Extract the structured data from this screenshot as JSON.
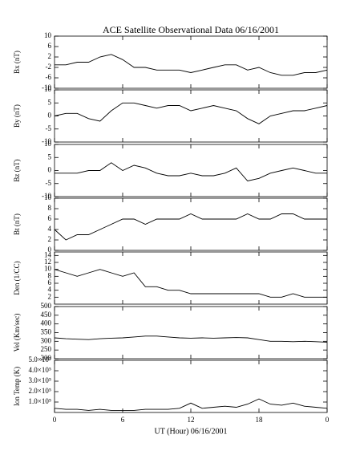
{
  "chart_data": [
    {
      "type": "line",
      "title": "ACE Satellite Observational Data   06/16/2001",
      "ylabel": "Bx (nT)",
      "x": [
        0,
        1,
        2,
        3,
        4,
        5,
        6,
        7,
        8,
        9,
        10,
        11,
        12,
        13,
        14,
        15,
        16,
        17,
        18,
        19,
        20,
        21,
        22,
        23,
        24
      ],
      "series": [
        {
          "color": "#000000",
          "values": [
            -1,
            -1,
            0,
            0,
            2,
            3,
            1,
            -2,
            -2,
            -3,
            -3,
            -3,
            -4,
            -3,
            -2,
            -1,
            -1,
            -3,
            -2,
            -4,
            -5,
            -5,
            -4,
            -4,
            -3
          ]
        }
      ],
      "xlim": [
        0,
        24
      ],
      "xticks": [
        0,
        6,
        12,
        18,
        24
      ],
      "ylim": [
        -10,
        10
      ],
      "yticks": [
        -10,
        -6,
        -2,
        2,
        6,
        10
      ]
    },
    {
      "type": "line",
      "ylabel": "By (nT)",
      "x": [
        0,
        1,
        2,
        3,
        4,
        5,
        6,
        7,
        8,
        9,
        10,
        11,
        12,
        13,
        14,
        15,
        16,
        17,
        18,
        19,
        20,
        21,
        22,
        23,
        24
      ],
      "series": [
        {
          "color": "#000000",
          "values": [
            0,
            1,
            1,
            -1,
            -2,
            2,
            5,
            5,
            4,
            3,
            4,
            4,
            2,
            3,
            4,
            3,
            2,
            -1,
            -3,
            0,
            1,
            2,
            2,
            3,
            4
          ]
        }
      ],
      "xlim": [
        0,
        24
      ],
      "xticks": [
        0,
        6,
        12,
        18,
        24
      ],
      "ylim": [
        -10,
        10
      ],
      "yticks": [
        -10,
        -5,
        0,
        5,
        10
      ]
    },
    {
      "type": "line",
      "ylabel": "Bz (nT)",
      "x": [
        0,
        1,
        2,
        3,
        4,
        5,
        6,
        7,
        8,
        9,
        10,
        11,
        12,
        13,
        14,
        15,
        16,
        17,
        18,
        19,
        20,
        21,
        22,
        23,
        24
      ],
      "series": [
        {
          "color": "#000000",
          "values": [
            -1,
            -1,
            -1,
            0,
            0,
            3,
            0,
            2,
            1,
            -1,
            -2,
            -2,
            -1,
            -2,
            -2,
            -1,
            1,
            -4,
            -3,
            -1,
            0,
            1,
            0,
            -1,
            -1
          ]
        }
      ],
      "xlim": [
        0,
        24
      ],
      "xticks": [
        0,
        6,
        12,
        18,
        24
      ],
      "ylim": [
        -10,
        10
      ],
      "yticks": [
        -10,
        -5,
        0,
        5,
        10
      ]
    },
    {
      "type": "line",
      "ylabel": "Bt (nT)",
      "x": [
        0,
        1,
        2,
        3,
        4,
        5,
        6,
        7,
        8,
        9,
        10,
        11,
        12,
        13,
        14,
        15,
        16,
        17,
        18,
        19,
        20,
        21,
        22,
        23,
        24
      ],
      "series": [
        {
          "color": "#000000",
          "values": [
            4,
            2,
            3,
            3,
            4,
            5,
            6,
            6,
            5,
            6,
            6,
            6,
            7,
            6,
            6,
            6,
            6,
            7,
            6,
            6,
            7,
            7,
            6,
            6,
            6
          ]
        }
      ],
      "xlim": [
        0,
        24
      ],
      "xticks": [
        0,
        6,
        12,
        18,
        24
      ],
      "ylim": [
        0,
        10
      ],
      "yticks": [
        0,
        2,
        4,
        6,
        8,
        10
      ]
    },
    {
      "type": "line",
      "ylabel": "Den (1/CC)",
      "x": [
        0,
        1,
        2,
        3,
        4,
        5,
        6,
        7,
        8,
        9,
        10,
        11,
        12,
        13,
        14,
        15,
        16,
        17,
        18,
        19,
        20,
        21,
        22,
        23,
        24
      ],
      "series": [
        {
          "color": "#000000",
          "values": [
            10,
            9,
            8,
            9,
            10,
            9,
            8,
            9,
            5,
            5,
            4,
            4,
            3,
            3,
            3,
            3,
            3,
            3,
            3,
            2,
            2,
            3,
            2,
            2,
            2
          ]
        }
      ],
      "xlim": [
        0,
        24
      ],
      "xticks": [
        0,
        6,
        12,
        18,
        24
      ],
      "ylim": [
        0,
        15
      ],
      "yticks": [
        2,
        4,
        6,
        8,
        10,
        12,
        14
      ]
    },
    {
      "type": "line",
      "ylabel": "Vel (Km/sec)",
      "x": [
        0,
        1,
        2,
        3,
        4,
        5,
        6,
        7,
        8,
        9,
        10,
        11,
        12,
        13,
        14,
        15,
        16,
        17,
        18,
        19,
        20,
        21,
        22,
        23,
        24
      ],
      "series": [
        {
          "color": "#000000",
          "values": [
            320,
            315,
            312,
            310,
            315,
            318,
            320,
            325,
            330,
            330,
            325,
            320,
            318,
            320,
            318,
            320,
            322,
            320,
            310,
            300,
            300,
            298,
            300,
            298,
            295
          ]
        }
      ],
      "xlim": [
        0,
        24
      ],
      "xticks": [
        0,
        6,
        12,
        18,
        24
      ],
      "ylim": [
        200,
        500
      ],
      "yticks": [
        200,
        250,
        300,
        350,
        400,
        450,
        500
      ]
    },
    {
      "type": "line",
      "ylabel": "Ion Temp (K)",
      "xlabel": "UT (Hour)   06/16/2001",
      "x": [
        0,
        1,
        2,
        3,
        4,
        5,
        6,
        7,
        8,
        9,
        10,
        11,
        12,
        13,
        14,
        15,
        16,
        17,
        18,
        19,
        20,
        21,
        22,
        23,
        24
      ],
      "series": [
        {
          "color": "#000000",
          "values": [
            40000,
            30000,
            30000,
            20000,
            30000,
            20000,
            20000,
            20000,
            30000,
            30000,
            30000,
            40000,
            90000,
            40000,
            50000,
            60000,
            50000,
            80000,
            130000,
            80000,
            70000,
            90000,
            60000,
            50000,
            40000
          ]
        }
      ],
      "xlim": [
        0,
        24
      ],
      "xticks": [
        0,
        6,
        12,
        18,
        {
          "value": 24,
          "label": "0"
        }
      ],
      "ylim": [
        0,
        500000
      ],
      "yticks": [
        {
          "value": 100000,
          "label": "1.0×10⁵"
        },
        {
          "value": 200000,
          "label": "2.0×10⁵"
        },
        {
          "value": 300000,
          "label": "3.0×10⁵"
        },
        {
          "value": 400000,
          "label": "4.0×10⁵"
        },
        {
          "value": 500000,
          "label": "5.0×10⁵"
        }
      ]
    }
  ]
}
